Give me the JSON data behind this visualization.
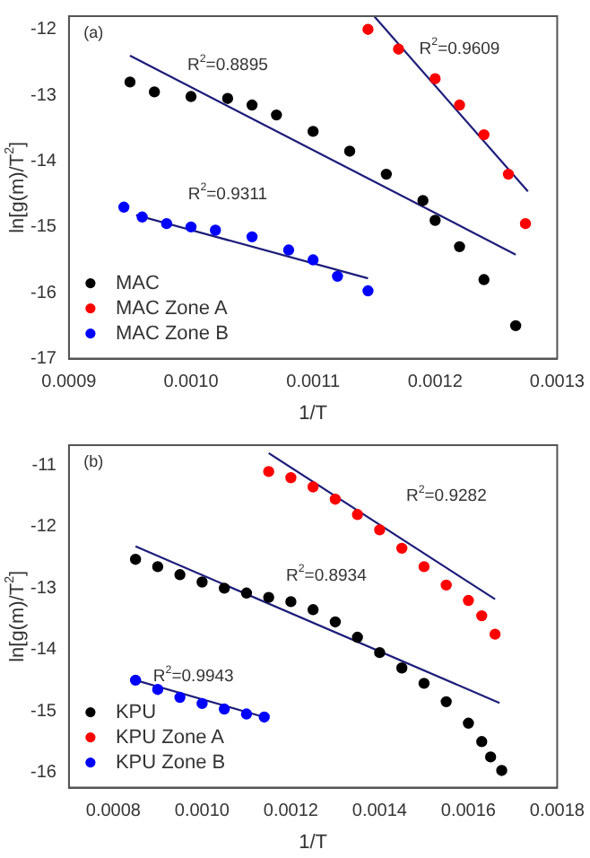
{
  "chart_data": [
    {
      "type": "scatter",
      "xlabel": "1/T",
      "ylabel": "ln[g(m)/T$^{2}$]",
      "xlim": [
        0.0009,
        0.0013
      ],
      "ylim": [
        -17,
        -11.8
      ],
      "xticks": [
        {
          "value": 0.0009,
          "label": "0.0009"
        },
        {
          "value": 0.001,
          "label": "0.0010"
        },
        {
          "value": 0.0011,
          "label": "0.0011"
        },
        {
          "value": 0.0012,
          "label": "0.0012"
        },
        {
          "value": 0.0013,
          "label": "0.0013"
        }
      ],
      "yticks": [
        -17,
        -16,
        -15,
        -14,
        -13,
        -12
      ],
      "grid": false,
      "legend": "bottom left",
      "series": [
        {
          "name": "MAC",
          "color": "#000000",
          "marker": "circle",
          "x": [
            0.00095,
            0.00097,
            0.001,
            0.00103,
            0.00105,
            0.00107,
            0.0011,
            0.00113,
            0.00116,
            0.00119,
            0.0012,
            0.00122,
            0.00124,
            0.001266
          ],
          "values": [
            -12.8,
            -12.95,
            -13.02,
            -13.05,
            -13.15,
            -13.3,
            -13.55,
            -13.85,
            -14.2,
            -14.6,
            -14.9,
            -15.3,
            -15.8,
            -16.5
          ]
        },
        {
          "name": "MAC Zone A",
          "color": "#ff0000",
          "marker": "circle",
          "x": [
            0.001145,
            0.00117,
            0.0012,
            0.00122,
            0.00124,
            0.00126,
            0.001274
          ],
          "values": [
            -12,
            -12.3,
            -12.75,
            -13.15,
            -13.6,
            -14.2,
            -14.95
          ]
        },
        {
          "name": "MAC Zone B",
          "color": "#0000ff",
          "marker": "circle",
          "x": [
            0.000945,
            0.00096,
            0.00098,
            0.001,
            0.00102,
            0.00105,
            0.00108,
            0.0011,
            0.00112,
            0.001145
          ],
          "values": [
            -14.7,
            -14.85,
            -14.95,
            -15,
            -15.05,
            -15.15,
            -15.35,
            -15.5,
            -15.75,
            -15.97
          ]
        },
        {
          "type": "line",
          "color": "#1c1c7a",
          "x": [
            0.00095,
            0.001266
          ],
          "values": [
            -12.4,
            -15.42
          ]
        },
        {
          "type": "line",
          "color": "#1c1c7a",
          "x": [
            0.00115,
            0.001276
          ],
          "values": [
            -11.8,
            -14.46
          ]
        },
        {
          "type": "line",
          "color": "#1c1c7a",
          "x": [
            0.000955,
            0.001145
          ],
          "values": [
            -14.82,
            -15.78
          ]
        }
      ],
      "annotations": [
        "(a)",
        "R$^{2}$=0.8895",
        "R$^{2}$=0.9609",
        "R$^{2}$=0.9311"
      ]
    },
    {
      "type": "scatter",
      "xlabel": "1/T",
      "ylabel": "ln[g(m)/T$^{2}$]",
      "xlim": [
        0.0007,
        0.0018
      ],
      "ylim": [
        -16.25,
        -10.67
      ],
      "xticks": [
        {
          "value": 0.0008,
          "label": "0.0008"
        },
        {
          "value": 0.001,
          "label": "0.0010"
        },
        {
          "value": 0.0012,
          "label": "0.0012"
        },
        {
          "value": 0.0014,
          "label": "0.0014"
        },
        {
          "value": 0.0016,
          "label": "0.0016"
        },
        {
          "value": 0.0018,
          "label": "0.0018"
        }
      ],
      "yticks": [
        -16,
        -15,
        -14,
        -13,
        -12,
        -11
      ],
      "grid": false,
      "legend": "bottom left",
      "series": [
        {
          "name": "KPU",
          "color": "#000000",
          "marker": "circle",
          "x": [
            0.00085,
            0.0009,
            0.00095,
            0.001,
            0.00105,
            0.0011,
            0.00115,
            0.0012,
            0.00125,
            0.0013,
            0.00135,
            0.0014,
            0.00145,
            0.0015,
            0.00155,
            0.0016,
            0.00163,
            0.00165,
            0.001675
          ],
          "values": [
            -12.53,
            -12.65,
            -12.78,
            -12.9,
            -13,
            -13.08,
            -13.15,
            -13.22,
            -13.35,
            -13.55,
            -13.8,
            -14.05,
            -14.3,
            -14.55,
            -14.85,
            -15.2,
            -15.5,
            -15.75,
            -15.97
          ]
        },
        {
          "name": "KPU Zone A",
          "color": "#ff0000",
          "marker": "circle",
          "x": [
            0.00115,
            0.0012,
            0.00125,
            0.0013,
            0.00135,
            0.0014,
            0.00145,
            0.0015,
            0.00155,
            0.0016,
            0.00163,
            0.00166
          ],
          "values": [
            -11.1,
            -11.2,
            -11.35,
            -11.55,
            -11.8,
            -12.05,
            -12.35,
            -12.65,
            -12.95,
            -13.2,
            -13.45,
            -13.75
          ]
        },
        {
          "name": "KPU Zone B",
          "color": "#0000ff",
          "marker": "circle",
          "x": [
            0.00085,
            0.0009,
            0.00095,
            0.001,
            0.00105,
            0.0011,
            0.00114
          ],
          "values": [
            -14.5,
            -14.65,
            -14.78,
            -14.88,
            -14.97,
            -15.05,
            -15.1
          ]
        },
        {
          "type": "line",
          "color": "#1c1c7a",
          "x": [
            0.00085,
            0.00167
          ],
          "values": [
            -12.32,
            -14.87
          ]
        },
        {
          "type": "line",
          "color": "#1c1c7a",
          "x": [
            0.00115,
            0.00166
          ],
          "values": [
            -10.8,
            -13.18
          ]
        },
        {
          "type": "line",
          "color": "#1c1c7a",
          "x": [
            0.00085,
            0.00114
          ],
          "values": [
            -14.5,
            -15.1
          ]
        }
      ],
      "annotations": [
        "(b)",
        "R$^{2}$=0.9282",
        "R$^{2}$=0.8934",
        "R$^{2}$=0.9943"
      ]
    }
  ]
}
